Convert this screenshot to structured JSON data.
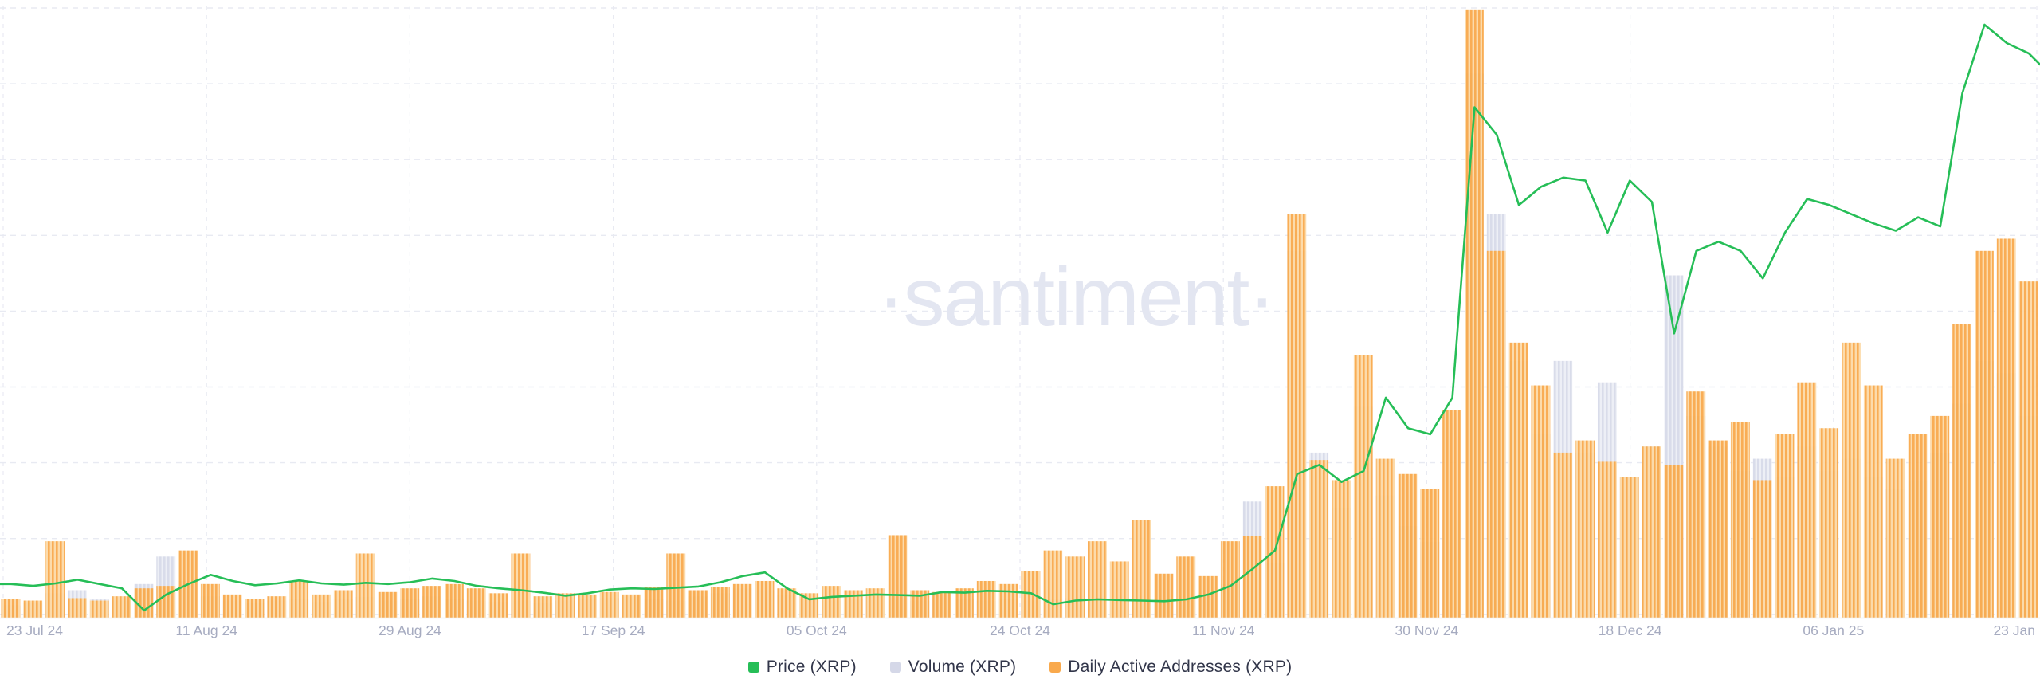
{
  "watermark": "·santiment·",
  "colors": {
    "background": "#ffffff",
    "grid": "#e8eaf2",
    "axis_line": "#eef0f6",
    "axis_label": "#a6abc0",
    "watermark": "#e3e6f1",
    "legend_text": "#32364a",
    "price_green": "#26be57",
    "volume_gray": "#d9dcea",
    "volume_gray_light": "#edeff6",
    "daa_orange": "#f9a94c",
    "daa_orange_light": "#fcd9a6"
  },
  "legend": {
    "items": [
      {
        "label": "Price (XRP)",
        "color": "#26be57",
        "series": "price"
      },
      {
        "label": "Volume (XRP)",
        "color": "#d5d8e8",
        "series": "volume"
      },
      {
        "label": "Daily Active Addresses (XRP)",
        "color": "#f9a94c",
        "series": "daa"
      }
    ]
  },
  "x_axis": {
    "tick_labels": [
      "23 Jul 24",
      "11 Aug 24",
      "29 Aug 24",
      "17 Sep 24",
      "05 Oct 24",
      "24 Oct 24",
      "11 Nov 24",
      "30 Nov 24",
      "18 Dec 24",
      "06 Jan 25",
      "23 Jan"
    ]
  },
  "y_axis": {
    "visible": false,
    "note": "no y-axis tick labels are shown in the chart"
  },
  "chart_data": {
    "type": "line+bar",
    "title": "",
    "xlabel": "",
    "ylabel": "",
    "x_range": [
      "23 Jul 24",
      "23 Jan 25"
    ],
    "sample_interval_days": 2,
    "points": 92,
    "value_unit": "fraction of plot height (chart shows no numeric y scale)",
    "grid": "dashed, horizontal and vertical",
    "legend_position": "bottom-center",
    "series": [
      {
        "name": "Price (XRP)",
        "type": "line",
        "color": "#26be57",
        "values": [
          0.055,
          0.052,
          0.056,
          0.062,
          0.055,
          0.048,
          0.012,
          0.038,
          0.055,
          0.07,
          0.06,
          0.053,
          0.056,
          0.061,
          0.056,
          0.054,
          0.057,
          0.055,
          0.058,
          0.064,
          0.06,
          0.052,
          0.048,
          0.045,
          0.041,
          0.036,
          0.04,
          0.046,
          0.048,
          0.047,
          0.049,
          0.051,
          0.058,
          0.068,
          0.074,
          0.048,
          0.03,
          0.034,
          0.036,
          0.038,
          0.037,
          0.036,
          0.042,
          0.041,
          0.044,
          0.043,
          0.04,
          0.022,
          0.028,
          0.03,
          0.029,
          0.028,
          0.027,
          0.03,
          0.038,
          0.052,
          0.08,
          0.11,
          0.235,
          0.25,
          0.222,
          0.24,
          0.36,
          0.31,
          0.3,
          0.36,
          0.835,
          0.79,
          0.675,
          0.705,
          0.72,
          0.715,
          0.63,
          0.715,
          0.68,
          0.465,
          0.6,
          0.615,
          0.6,
          0.555,
          0.63,
          0.685,
          0.675,
          0.66,
          0.645,
          0.633,
          0.655,
          0.64,
          0.858,
          0.97,
          0.94,
          0.923
        ]
      },
      {
        "name": "Volume (XRP)",
        "type": "bar",
        "color": "#d9dcea",
        "values": [
          0.02,
          0.025,
          0.04,
          0.045,
          0.03,
          0.028,
          0.055,
          0.1,
          0.06,
          0.035,
          0.028,
          0.025,
          0.028,
          0.03,
          0.026,
          0.03,
          0.034,
          0.028,
          0.03,
          0.035,
          0.03,
          0.028,
          0.026,
          0.028,
          0.025,
          0.028,
          0.03,
          0.032,
          0.035,
          0.03,
          0.028,
          0.035,
          0.04,
          0.048,
          0.045,
          0.038,
          0.03,
          0.028,
          0.03,
          0.035,
          0.032,
          0.028,
          0.038,
          0.03,
          0.028,
          0.03,
          0.028,
          0.03,
          0.032,
          0.03,
          0.028,
          0.028,
          0.03,
          0.032,
          0.04,
          0.055,
          0.19,
          0.09,
          0.6,
          0.27,
          0.18,
          0.345,
          0.2,
          0.15,
          0.124,
          0.16,
          0.89,
          0.66,
          0.42,
          0.3,
          0.42,
          0.27,
          0.385,
          0.23,
          0.28,
          0.56,
          0.33,
          0.28,
          0.24,
          0.26,
          0.23,
          0.28,
          0.24,
          0.26,
          0.23,
          0.21,
          0.225,
          0.27,
          0.35,
          0.42,
          0.4,
          0.33
        ]
      },
      {
        "name": "Daily Active Addresses (XRP)",
        "type": "bar",
        "color": "#f9a94c",
        "values": [
          0.03,
          0.028,
          0.125,
          0.032,
          0.028,
          0.035,
          0.048,
          0.052,
          0.11,
          0.055,
          0.038,
          0.03,
          0.035,
          0.06,
          0.038,
          0.045,
          0.105,
          0.042,
          0.048,
          0.052,
          0.055,
          0.048,
          0.04,
          0.105,
          0.035,
          0.04,
          0.038,
          0.042,
          0.038,
          0.05,
          0.105,
          0.045,
          0.05,
          0.055,
          0.06,
          0.048,
          0.04,
          0.052,
          0.045,
          0.048,
          0.135,
          0.045,
          0.042,
          0.048,
          0.06,
          0.055,
          0.076,
          0.11,
          0.1,
          0.125,
          0.092,
          0.16,
          0.072,
          0.1,
          0.068,
          0.125,
          0.133,
          0.215,
          0.66,
          0.258,
          0.225,
          0.43,
          0.26,
          0.235,
          0.21,
          0.34,
          0.995,
          0.6,
          0.45,
          0.38,
          0.27,
          0.29,
          0.255,
          0.23,
          0.28,
          0.25,
          0.37,
          0.29,
          0.32,
          0.225,
          0.3,
          0.385,
          0.31,
          0.45,
          0.38,
          0.26,
          0.3,
          0.33,
          0.48,
          0.6,
          0.62,
          0.55
        ]
      }
    ]
  }
}
